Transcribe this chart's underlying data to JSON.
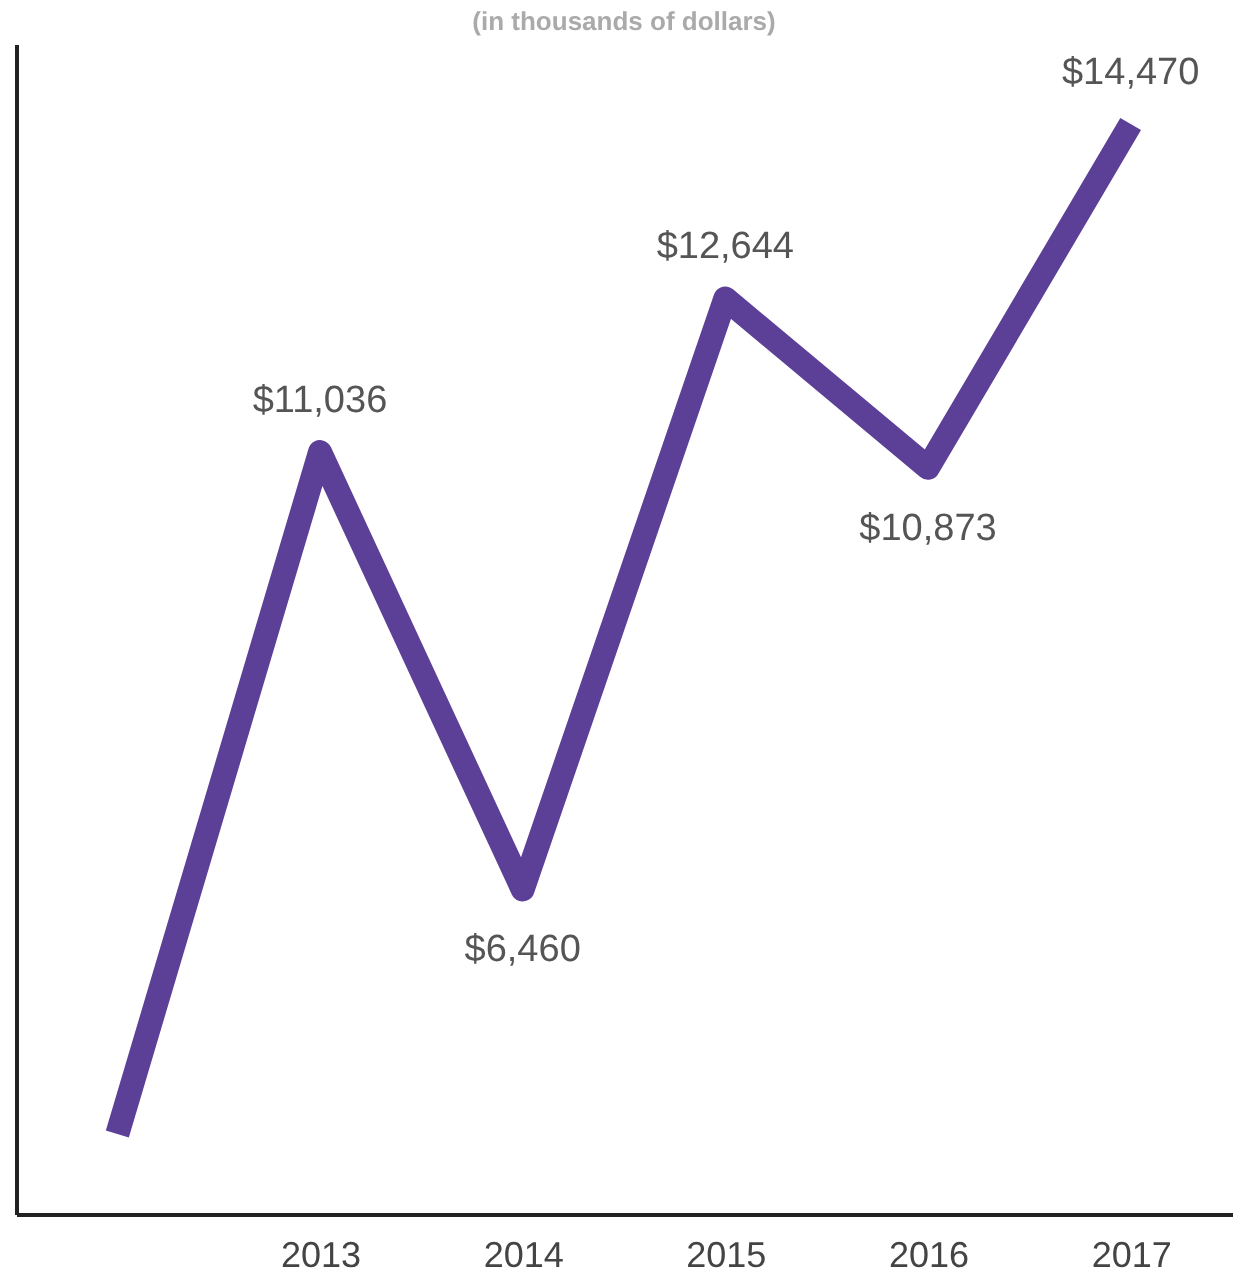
{
  "chart_data": {
    "type": "line",
    "subtitle": "(in thousands of dollars)",
    "categories": [
      null,
      "2013",
      "2014",
      "2015",
      "2016",
      "2017"
    ],
    "series": [
      {
        "color": "#5c3f96",
        "values": [
          3900,
          11036,
          6460,
          12644,
          10873,
          14470
        ],
        "value_labels": [
          null,
          "$11,036",
          "$6,460",
          "$12,644",
          "$10,873",
          "$14,470"
        ]
      }
    ],
    "tick_labels": "x",
    "grid": false,
    "marker": "none",
    "line_style": "solid"
  }
}
